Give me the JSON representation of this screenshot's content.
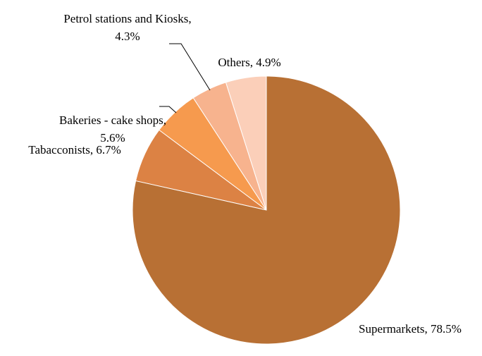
{
  "chart_data": {
    "type": "pie",
    "values": [
      78.5,
      6.7,
      5.6,
      4.3,
      4.9
    ],
    "value_labels": [
      "Supermarkets, 78.5%",
      "Tabacconists, 6.7%",
      "Bakeries - cake shops, 5.6%",
      "Petrol stations and Kiosks, 4.3%",
      "Others, 4.9%"
    ],
    "colors": [
      "#b87034",
      "#dc8244",
      "#f69a4e",
      "#f7b38e",
      "#fbcfb9"
    ]
  }
}
